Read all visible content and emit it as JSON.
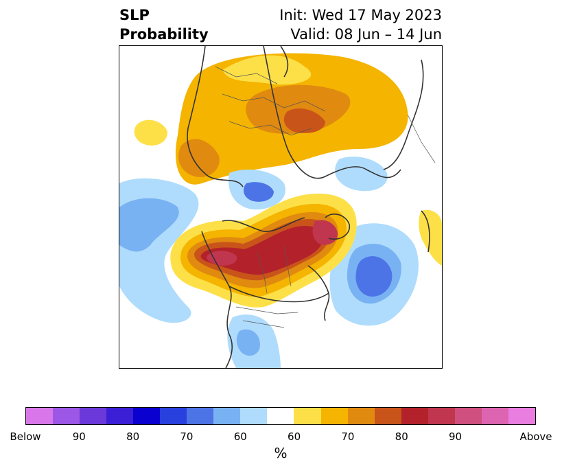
{
  "title": {
    "left_line1": "SLP",
    "left_line2": "Probability",
    "right_line1": "Init: Wed 17 May 2023",
    "right_line2": "Valid: 08 Jun – 14 Jun"
  },
  "colorbar": {
    "unit": "%",
    "colors": [
      "#d977ea",
      "#9c57e6",
      "#6b39da",
      "#3a1fd6",
      "#0a00cf",
      "#2840de",
      "#4c74e6",
      "#79b2f3",
      "#afdcfc",
      "#ffffff",
      "#fde047",
      "#f4b400",
      "#e08a10",
      "#c9541a",
      "#b3222a",
      "#c0364f",
      "#cf4f7f",
      "#dc64b1",
      "#e97de0"
    ],
    "tick_labels": [
      {
        "text": "Below",
        "idx": 0
      },
      {
        "text": "90",
        "idx": 2
      },
      {
        "text": "80",
        "idx": 4
      },
      {
        "text": "70",
        "idx": 6
      },
      {
        "text": "60",
        "idx": 8
      },
      {
        "text": "60",
        "idx": 10
      },
      {
        "text": "70",
        "idx": 12
      },
      {
        "text": "80",
        "idx": 14
      },
      {
        "text": "90",
        "idx": 16
      },
      {
        "text": "Above",
        "idx": 19
      }
    ]
  }
}
